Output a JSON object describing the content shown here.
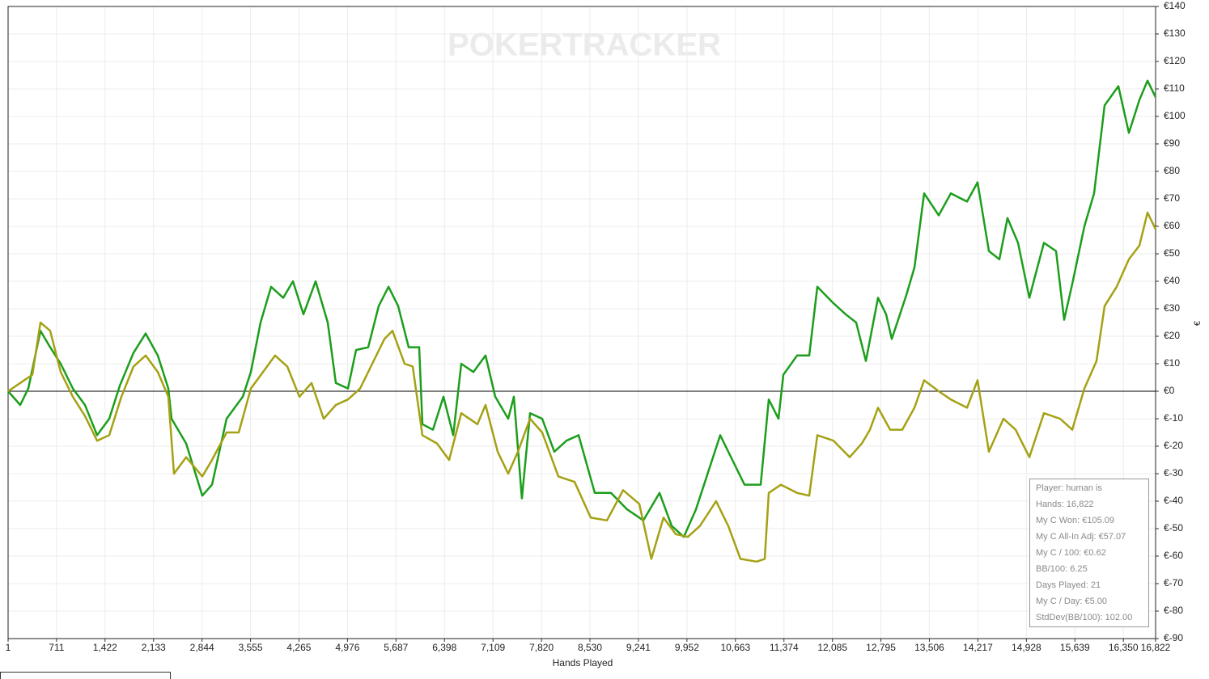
{
  "chart_data": {
    "type": "line",
    "watermark": "POKERTRACKER",
    "x_label": "Hands Played",
    "y_label": "€",
    "xlim": [
      1,
      16822
    ],
    "ylim": [
      -90,
      140
    ],
    "xticks": [
      1,
      {
        "value": 711,
        "label": "711"
      },
      {
        "value": 1422,
        "label": "1,422"
      },
      {
        "value": 2133,
        "label": "2,133"
      },
      {
        "value": 2844,
        "label": "2,844"
      },
      {
        "value": 3555,
        "label": "3,555"
      },
      {
        "value": 4265,
        "label": "4,265"
      },
      {
        "value": 4976,
        "label": "4,976"
      },
      {
        "value": 5687,
        "label": "5,687"
      },
      {
        "value": 6398,
        "label": "6,398"
      },
      {
        "value": 7109,
        "label": "7,109"
      },
      {
        "value": 7820,
        "label": "7,820"
      },
      {
        "value": 8530,
        "label": "8,530"
      },
      {
        "value": 9241,
        "label": "9,241"
      },
      {
        "value": 9952,
        "label": "9,952"
      },
      {
        "value": 10663,
        "label": "10,663"
      },
      {
        "value": 11374,
        "label": "11,374"
      },
      {
        "value": 12085,
        "label": "12,085"
      },
      {
        "value": 12795,
        "label": "12,795"
      },
      {
        "value": 13506,
        "label": "13,506"
      },
      {
        "value": 14217,
        "label": "14,217"
      },
      {
        "value": 14928,
        "label": "14,928"
      },
      {
        "value": 15639,
        "label": "15,639"
      },
      {
        "value": 16350,
        "label": "16,350"
      },
      {
        "value": 16822,
        "label": "16,822"
      }
    ],
    "yticks": [
      {
        "value": 140,
        "label": "€140"
      },
      {
        "value": 130,
        "label": "€130"
      },
      {
        "value": 120,
        "label": "€120"
      },
      {
        "value": 110,
        "label": "€110"
      },
      {
        "value": 100,
        "label": "€100"
      },
      {
        "value": 90,
        "label": "€90"
      },
      {
        "value": 80,
        "label": "€80"
      },
      {
        "value": 70,
        "label": "€70"
      },
      {
        "value": 60,
        "label": "€60"
      },
      {
        "value": 50,
        "label": "€50"
      },
      {
        "value": 40,
        "label": "€40"
      },
      {
        "value": 30,
        "label": "€30"
      },
      {
        "value": 20,
        "label": "€20"
      },
      {
        "value": 10,
        "label": "€10"
      },
      {
        "value": 0,
        "label": "€0"
      },
      {
        "value": -10,
        "label": "€-10"
      },
      {
        "value": -20,
        "label": "€-20"
      },
      {
        "value": -30,
        "label": "€-30"
      },
      {
        "value": -40,
        "label": "€-40"
      },
      {
        "value": -50,
        "label": "€-50"
      },
      {
        "value": -60,
        "label": "€-60"
      },
      {
        "value": -70,
        "label": "€-70"
      },
      {
        "value": -80,
        "label": "€-80"
      },
      {
        "value": -90,
        "label": "€-90"
      }
    ],
    "grid": true,
    "series": [
      {
        "color": "#1c9e1c",
        "x": [
          1,
          179,
          298,
          475,
          618,
          772,
          950,
          1128,
          1306,
          1484,
          1638,
          1840,
          2018,
          2196,
          2350,
          2397,
          2611,
          2848,
          2990,
          3204,
          3441,
          3560,
          3702,
          3856,
          4034,
          4177,
          4331,
          4509,
          4687,
          4805,
          4983,
          5102,
          5280,
          5434,
          5577,
          5719,
          5873,
          6027,
          6075,
          6229,
          6383,
          6526,
          6644,
          6822,
          7000,
          7142,
          7332,
          7415,
          7533,
          7652,
          7830,
          8008,
          8186,
          8364,
          8601,
          8838,
          9076,
          9313,
          9550,
          9728,
          9906,
          10084,
          10321,
          10440,
          10618,
          10796,
          11033,
          11152,
          11294,
          11365,
          11567,
          11745,
          11864,
          12101,
          12279,
          12433,
          12575,
          12753,
          12872,
          12955,
          13168,
          13287,
          13429,
          13643,
          13821,
          14058,
          14212,
          14378,
          14533,
          14651,
          14805,
          14971,
          15185,
          15363,
          15481,
          15600,
          15778,
          15920,
          16075,
          16276,
          16431,
          16585,
          16703,
          16822
        ],
        "values": [
          0,
          -5,
          1,
          22,
          16,
          10,
          1,
          -5,
          -16,
          -10,
          2,
          14,
          21,
          13,
          1,
          -10,
          -19,
          -38,
          -34,
          -10,
          -2,
          7,
          25,
          38,
          34,
          40,
          28,
          40,
          25,
          3,
          1,
          15,
          16,
          31,
          38,
          31,
          16,
          16,
          -12,
          -14,
          -2,
          -16,
          10,
          7,
          13,
          -2,
          -10,
          -2,
          -39,
          -8,
          -10,
          -22,
          -18,
          -16,
          -37,
          -37,
          -43,
          -47,
          -37,
          -49,
          -53,
          -43,
          -25,
          -16,
          -25,
          -34,
          -34,
          -3,
          -10,
          6,
          13,
          13,
          38,
          32,
          28,
          25,
          11,
          34,
          28,
          19,
          35,
          45,
          72,
          64,
          72,
          69,
          76,
          51,
          48,
          63,
          54,
          34,
          54,
          51,
          26,
          39,
          60,
          72,
          104,
          111,
          94,
          106,
          113,
          107
        ]
      },
      {
        "color": "#a5a114",
        "x": [
          1,
          179,
          357,
          475,
          618,
          772,
          950,
          1128,
          1306,
          1484,
          1662,
          1840,
          2018,
          2196,
          2350,
          2433,
          2611,
          2848,
          2990,
          3204,
          3382,
          3560,
          3738,
          3915,
          4093,
          4271,
          4449,
          4627,
          4805,
          4983,
          5161,
          5339,
          5517,
          5636,
          5814,
          5932,
          6075,
          6288,
          6466,
          6644,
          6881,
          7000,
          7178,
          7332,
          7474,
          7652,
          7830,
          8067,
          8305,
          8542,
          8779,
          9016,
          9254,
          9431,
          9609,
          9787,
          9965,
          10143,
          10380,
          10558,
          10736,
          10973,
          11092,
          11152,
          11329,
          11567,
          11745,
          11864,
          12101,
          12338,
          12516,
          12634,
          12753,
          12931,
          13109,
          13287,
          13429,
          13643,
          13821,
          14058,
          14212,
          14378,
          14592,
          14770,
          14971,
          15185,
          15422,
          15600,
          15778,
          15956,
          16075,
          16252,
          16431,
          16585,
          16703,
          16822
        ],
        "values": [
          0,
          3,
          6,
          25,
          22,
          7,
          -2,
          -9,
          -18,
          -16,
          -2,
          9,
          13,
          7,
          -2,
          -30,
          -24,
          -31,
          -25,
          -15,
          -15,
          1,
          7,
          13,
          9,
          -2,
          3,
          -10,
          -5,
          -3,
          1,
          10,
          19,
          22,
          10,
          9,
          -16,
          -19,
          -25,
          -8,
          -12,
          -5,
          -22,
          -30,
          -22,
          -10,
          -15,
          -31,
          -33,
          -46,
          -47,
          -36,
          -41,
          -61,
          -46,
          -52,
          -53,
          -49,
          -40,
          -49,
          -61,
          -62,
          -61,
          -37,
          -34,
          -37,
          -38,
          -16,
          -18,
          -24,
          -19,
          -14,
          -6,
          -14,
          -14,
          -6,
          4,
          0,
          -3,
          -6,
          4,
          -22,
          -10,
          -14,
          -24,
          -8,
          -10,
          -14,
          1,
          11,
          31,
          38,
          48,
          53,
          65,
          59
        ]
      }
    ],
    "annotations": [
      "Player: human is",
      "Hands: 16,822",
      "My C Won: €105.09",
      "My C All-In Adj: €57.07",
      "My C / 100: €0.62",
      "BB/100: 6.25",
      "Days Played: 21",
      "My C / Day: €5.00",
      "StdDev(BB/100): 102.00"
    ]
  }
}
